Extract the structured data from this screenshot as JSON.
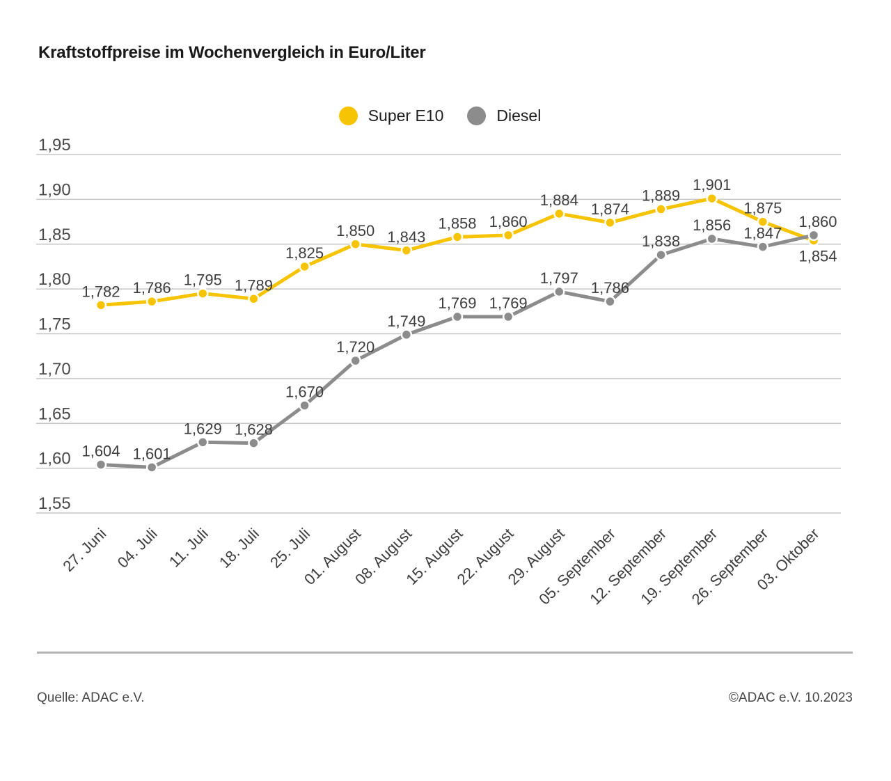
{
  "title": "Kraftstoffpreise im Wochenvergleich in Euro/Liter",
  "footer": {
    "source": "Quelle: ADAC e.V.",
    "copyright": "©ADAC e.V. 10.2023"
  },
  "colors": {
    "super_e10": "#F6C403",
    "diesel": "#8C8C8C",
    "grid": "#C6C6C6",
    "title_text": "#1A1A1A",
    "data_label_text": "#3D3D3D",
    "axis_text": "#4A4A4A",
    "divider": "#B3B3B3",
    "background": "#FFFFFF",
    "marker_ring": "#FFFFFF"
  },
  "chart_data": {
    "type": "line",
    "title": "Kraftstoffpreise im Wochenvergleich in Euro/Liter",
    "unit": "Euro/Liter",
    "legend_position": "top-center",
    "grid": true,
    "categories": [
      "27. Juni",
      "04. Juli",
      "11. Juli",
      "18. Juli",
      "25. Juli",
      "01. August",
      "08. August",
      "15. August",
      "22. August",
      "29. August",
      "05. September",
      "12. September",
      "19. September",
      "26. September",
      "03. Oktober"
    ],
    "series": [
      {
        "name": "Super E10",
        "color": "#F6C403",
        "values": [
          1.782,
          1.786,
          1.795,
          1.789,
          1.825,
          1.85,
          1.843,
          1.858,
          1.86,
          1.884,
          1.874,
          1.889,
          1.901,
          1.875,
          1.854
        ],
        "value_labels": [
          "1,782",
          "1,786",
          "1,795",
          "1,789",
          "1,825",
          "1,850",
          "1,843",
          "1,858",
          "1,860",
          "1,884",
          "1,874",
          "1,889",
          "1,901",
          "1,875",
          "1,854"
        ]
      },
      {
        "name": "Diesel",
        "color": "#8C8C8C",
        "values": [
          1.604,
          1.601,
          1.629,
          1.628,
          1.67,
          1.72,
          1.749,
          1.769,
          1.769,
          1.797,
          1.786,
          1.838,
          1.856,
          1.847,
          1.86
        ],
        "value_labels": [
          "1,604",
          "1,601",
          "1,629",
          "1,628",
          "1,670",
          "1,720",
          "1,749",
          "1,769",
          "1,769",
          "1,797",
          "1,786",
          "1,838",
          "1,856",
          "1,847",
          "1,860"
        ]
      }
    ],
    "ylim": [
      1.55,
      1.95
    ],
    "ytick_step": 0.05,
    "ytick_labels": [
      "1,95",
      "1,90",
      "1,85",
      "1,80",
      "1,75",
      "1,70",
      "1,65",
      "1,60",
      "1,55"
    ],
    "xlabel": "",
    "ylabel": ""
  }
}
